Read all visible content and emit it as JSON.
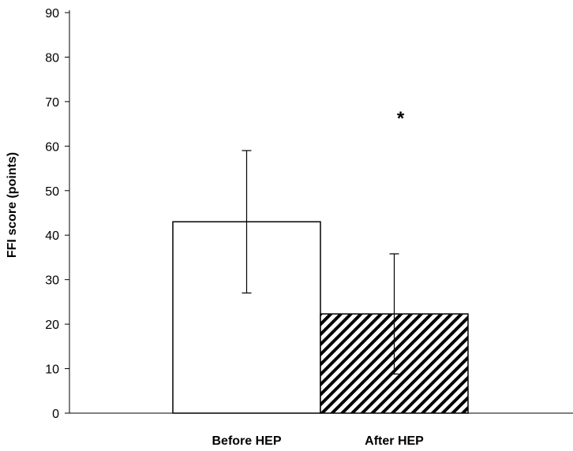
{
  "chart_data": {
    "type": "bar",
    "title": "",
    "xlabel": "",
    "ylabel": "FFI score (points)",
    "ylim": [
      0,
      90
    ],
    "yticks": [
      0,
      10,
      20,
      30,
      40,
      50,
      60,
      70,
      80,
      90
    ],
    "categories": [
      "Before HEP",
      "After HEP"
    ],
    "values": [
      43,
      22.3
    ],
    "error_bars": [
      16,
      13.5
    ],
    "bar_fills": [
      "white",
      "diagonal-hatch"
    ],
    "annotations": [
      {
        "category": "After HEP",
        "text": "*"
      }
    ],
    "grid": false,
    "legend": "none"
  }
}
